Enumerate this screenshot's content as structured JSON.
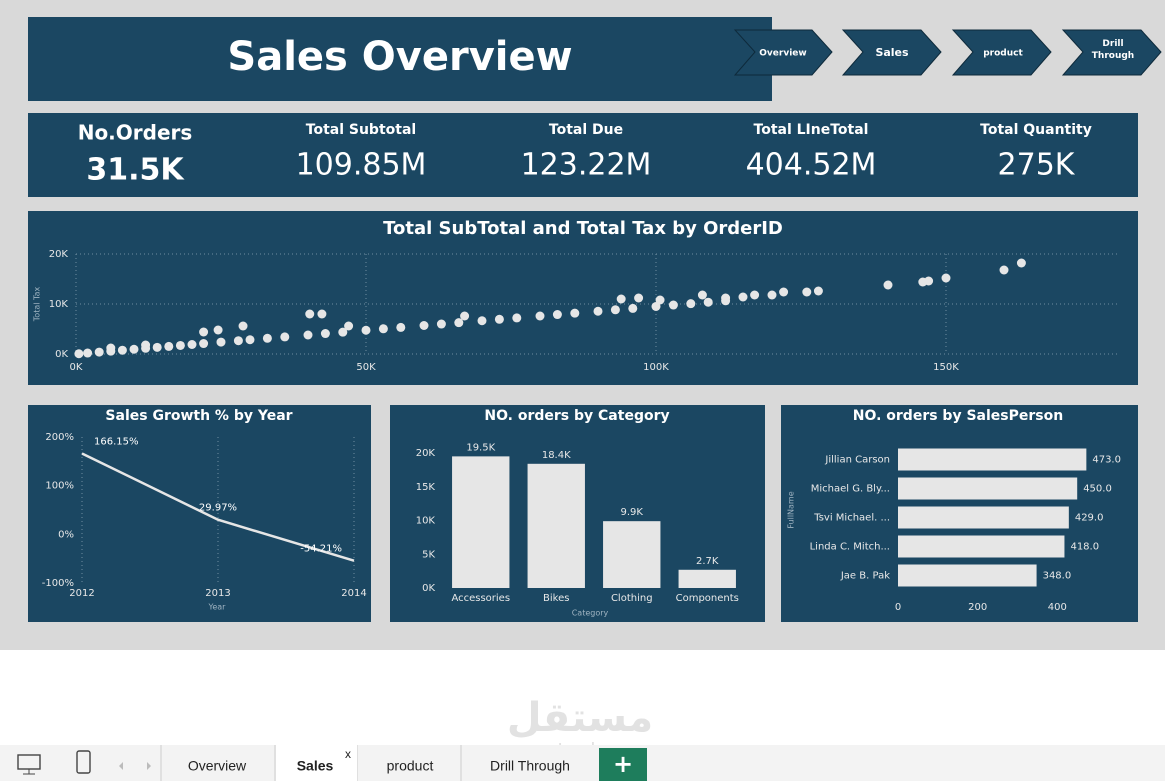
{
  "header": {
    "title": "Sales Overview"
  },
  "nav": [
    "Overview",
    "Sales",
    "product",
    "Drill Through"
  ],
  "kpis": [
    {
      "label": "No.Orders",
      "value": "31.5K"
    },
    {
      "label": "Total Subtotal",
      "value": "109.85M"
    },
    {
      "label": "Total Due",
      "value": "123.22M"
    },
    {
      "label": "Total LIneTotal",
      "value": "404.52M"
    },
    {
      "label": "Total Quantity",
      "value": "275K"
    }
  ],
  "chart_data": [
    {
      "type": "scatter",
      "title": "Total SubTotal and Total Tax by OrderID",
      "y_label": "Total Tax",
      "color": "#e6e6e6",
      "grid": true,
      "x": [
        500,
        2000,
        4000,
        6000,
        8000,
        10000,
        12000,
        14000,
        16000,
        18000,
        20000,
        22000,
        25000,
        28000,
        30000,
        33000,
        36000,
        40000,
        43000,
        46000,
        50000,
        53000,
        56000,
        60000,
        63000,
        66000,
        70000,
        73000,
        76000,
        80000,
        83000,
        86000,
        90000,
        93000,
        96000,
        100000,
        103000,
        106000,
        109000,
        112000,
        6000,
        12000,
        22000,
        24500,
        28800,
        40300,
        42400,
        47000,
        67000,
        94000,
        97000,
        100700,
        108000,
        112000,
        115000,
        117000,
        120000,
        122000,
        126000,
        128000,
        140000,
        146000,
        147000,
        150000,
        160000,
        163000
      ],
      "values": [
        50,
        190,
        380,
        570,
        760,
        950,
        1140,
        1330,
        1520,
        1710,
        1900,
        2090,
        2380,
        2660,
        2850,
        3140,
        3420,
        3800,
        4090,
        4370,
        4750,
        5040,
        5320,
        5700,
        5990,
        6270,
        6650,
        6940,
        7220,
        7600,
        7890,
        8170,
        8550,
        8840,
        9120,
        9500,
        9790,
        10070,
        10360,
        10640,
        1200,
        1800,
        4400,
        4800,
        5600,
        8000,
        8000,
        5600,
        7600,
        11000,
        11200,
        10800,
        11800,
        11200,
        11400,
        11800,
        11800,
        12400,
        12400,
        12600,
        13800,
        14400,
        14600,
        15200,
        16800,
        18200
      ],
      "xlim": [
        0,
        180000
      ],
      "xticks": [
        {
          "value": 0,
          "label": "0K"
        },
        {
          "value": 50000,
          "label": "50K"
        },
        {
          "value": 100000,
          "label": "100K"
        },
        {
          "value": 150000,
          "label": "150K"
        }
      ],
      "ylim": [
        0,
        20000
      ],
      "yticks": [
        {
          "value": 0,
          "label": "0K"
        },
        {
          "value": 10000,
          "label": "10K"
        },
        {
          "value": 20000,
          "label": "20K"
        }
      ]
    },
    {
      "type": "line",
      "title": "Sales Growth % by Year",
      "x_label": "Year",
      "color": "#e6e6e6",
      "grid": true,
      "categories": [
        "2012",
        "2013",
        "2014"
      ],
      "values": [
        166.15,
        29.97,
        -54.21
      ],
      "value_labels": [
        "166.15%",
        "29.97%",
        "-54.21%"
      ],
      "ylim": [
        -100,
        200
      ],
      "yticks": [
        {
          "value": -100,
          "label": "-100%"
        },
        {
          "value": 0,
          "label": "0%"
        },
        {
          "value": 100,
          "label": "100%"
        },
        {
          "value": 200,
          "label": "200%"
        }
      ]
    },
    {
      "type": "bar",
      "title": "NO. orders by Category",
      "x_label": "Category",
      "color": "#e6e6e6",
      "categories": [
        "Accessories",
        "Bikes",
        "Clothing",
        "Components"
      ],
      "values": [
        19500,
        18400,
        9900,
        2700
      ],
      "value_labels": [
        "19.5K",
        "18.4K",
        "9.9K",
        "2.7K"
      ],
      "ylim": [
        0,
        20000
      ],
      "yticks": [
        {
          "value": 0,
          "label": "0K"
        },
        {
          "value": 5000,
          "label": "5K"
        },
        {
          "value": 10000,
          "label": "10K"
        },
        {
          "value": 15000,
          "label": "15K"
        },
        {
          "value": 20000,
          "label": "20K"
        }
      ]
    },
    {
      "type": "bar",
      "horizontal": true,
      "title": "NO. orders by SalesPerson",
      "y_label": "FullName",
      "color": "#e6e6e6",
      "categories": [
        "Jillian Carson",
        "Michael G. Bly...",
        "Tsvi Michael. ...",
        "Linda C. Mitch...",
        "Jae B. Pak"
      ],
      "values": [
        473,
        450,
        429,
        418,
        348
      ],
      "value_labels": [
        "473.0",
        "450.0",
        "429.0",
        "418.0",
        "348.0"
      ],
      "xlim": [
        0,
        560
      ],
      "xticks": [
        0,
        200,
        400
      ]
    }
  ],
  "tabs": {
    "pages": [
      "Overview",
      "Sales",
      "product",
      "Drill Through"
    ],
    "close": "x",
    "add": "+"
  },
  "watermark": {
    "brand": "مستقل",
    "site": "mostaql.com"
  }
}
